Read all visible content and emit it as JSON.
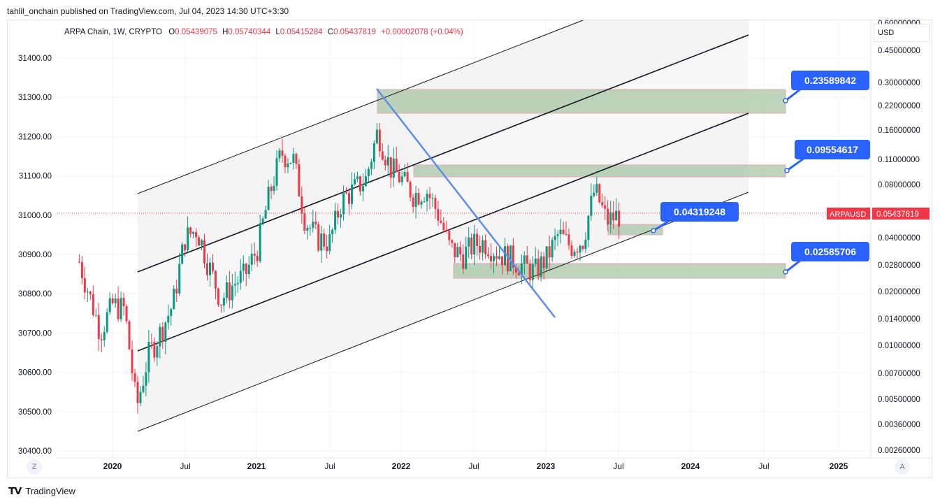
{
  "header": {
    "publisher": "tahlil_onchain published on TradingView.com, Jul 04, 2023 14:30 UTC+3:30"
  },
  "legend": {
    "symbol": "ARPA Chain, 1W, CRYPTO",
    "o_label": "O",
    "o": "0.05439075",
    "h_label": "H",
    "h": "0.05740344",
    "l_label": "L",
    "l": "0.05415284",
    "c_label": "C",
    "c": "0.05437819",
    "change": "+0.00002078 (+0.04%)"
  },
  "currency": "USD",
  "footer": {
    "brand": "TradingView"
  },
  "buttons": {
    "log": "Z",
    "auto": "A"
  },
  "colors": {
    "down": "#f23645",
    "up": "#089981",
    "trendline": "#5b8def",
    "zone_fill": "#a8c7a5",
    "zone_border": "#e8a6b8",
    "label_bg": "#2962ff"
  },
  "chart_data": {
    "type": "candlestick",
    "symbol": "ARPAUSD",
    "interval": "1W",
    "last_price": "0.05437819",
    "current_price_label": "0.05437819",
    "x_ticks": [
      "2020",
      "Jul",
      "2021",
      "Jul",
      "2022",
      "Jul",
      "2023",
      "Jul",
      "2024",
      "Jul",
      "2025"
    ],
    "left_axis_ticks": [
      "31400.00",
      "31300.00",
      "31200.00",
      "31100.00",
      "31000.00",
      "30900.00",
      "30800.00",
      "30700.00",
      "30600.00",
      "30500.00",
      "30400.00"
    ],
    "right_axis_ticks": [
      "0.60000000",
      "0.45000000",
      "0.30000000",
      "0.22000000",
      "0.16000000",
      "0.11000000",
      "0.08000000",
      "0.05437819",
      "0.04000000",
      "0.02800000",
      "0.02000000",
      "0.01400000",
      "0.01000000",
      "0.00700000",
      "0.00500000",
      "0.00360000",
      "0.00260000"
    ],
    "scale": "log",
    "levels": [
      {
        "label": "0.23589842",
        "low": 0.205,
        "high": 0.275
      },
      {
        "label": "0.09554617",
        "low": 0.088,
        "high": 0.102
      },
      {
        "label": "0.04319248",
        "low": 0.041,
        "high": 0.0455
      },
      {
        "label": "0.02585706",
        "low": 0.0243,
        "high": 0.0283
      }
    ],
    "candles_weekly_close_approx": [
      {
        "date": "2019-11",
        "c": 0.02
      },
      {
        "date": "2019-12",
        "c": 0.012
      },
      {
        "date": "2020-01",
        "c": 0.017
      },
      {
        "date": "2020-02",
        "c": 0.016
      },
      {
        "date": "2020-03",
        "c": 0.0045
      },
      {
        "date": "2020-04",
        "c": 0.009
      },
      {
        "date": "2020-05",
        "c": 0.012
      },
      {
        "date": "2020-06",
        "c": 0.017
      },
      {
        "date": "2020-07",
        "c": 0.04
      },
      {
        "date": "2020-08",
        "c": 0.045
      },
      {
        "date": "2020-09",
        "c": 0.028
      },
      {
        "date": "2020-10",
        "c": 0.018
      },
      {
        "date": "2020-11",
        "c": 0.022
      },
      {
        "date": "2020-12",
        "c": 0.025
      },
      {
        "date": "2021-01",
        "c": 0.035
      },
      {
        "date": "2021-02",
        "c": 0.07
      },
      {
        "date": "2021-03",
        "c": 0.12
      },
      {
        "date": "2021-04",
        "c": 0.11
      },
      {
        "date": "2021-05",
        "c": 0.05
      },
      {
        "date": "2021-06",
        "c": 0.04
      },
      {
        "date": "2021-07",
        "c": 0.038
      },
      {
        "date": "2021-08",
        "c": 0.065
      },
      {
        "date": "2021-09",
        "c": 0.075
      },
      {
        "date": "2021-10",
        "c": 0.085
      },
      {
        "date": "2021-11",
        "c": 0.16
      },
      {
        "date": "2021-12",
        "c": 0.1
      },
      {
        "date": "2022-01",
        "c": 0.085
      },
      {
        "date": "2022-02",
        "c": 0.07
      },
      {
        "date": "2022-03",
        "c": 0.075
      },
      {
        "date": "2022-04",
        "c": 0.055
      },
      {
        "date": "2022-05",
        "c": 0.035
      },
      {
        "date": "2022-06",
        "c": 0.032
      },
      {
        "date": "2022-07",
        "c": 0.037
      },
      {
        "date": "2022-08",
        "c": 0.038
      },
      {
        "date": "2022-09",
        "c": 0.033
      },
      {
        "date": "2022-10",
        "c": 0.031
      },
      {
        "date": "2022-11",
        "c": 0.028
      },
      {
        "date": "2022-12",
        "c": 0.026
      },
      {
        "date": "2023-01",
        "c": 0.031
      },
      {
        "date": "2023-02",
        "c": 0.042
      },
      {
        "date": "2023-03",
        "c": 0.036
      },
      {
        "date": "2023-04",
        "c": 0.039
      },
      {
        "date": "2023-05",
        "c": 0.075
      },
      {
        "date": "2023-06",
        "c": 0.05
      },
      {
        "date": "2023-07",
        "c": 0.054
      }
    ]
  }
}
